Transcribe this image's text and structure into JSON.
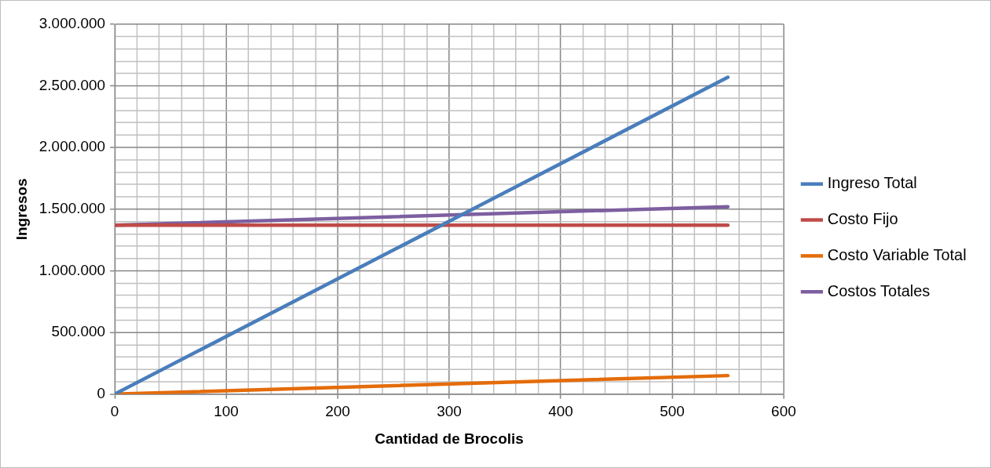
{
  "chart_data": {
    "type": "line",
    "xlabel": "Cantidad de Brocolis",
    "ylabel": "Ingresos",
    "x": [
      0,
      550
    ],
    "series": [
      {
        "name": "Ingreso Total",
        "color": "#4a7ebb",
        "values": [
          0,
          2570000
        ]
      },
      {
        "name": "Costo Fijo",
        "color": "#be4b48",
        "values": [
          1370000,
          1370000
        ]
      },
      {
        "name": "Costo Variable Total",
        "color": "#e46c0a",
        "values": [
          0,
          150000
        ]
      },
      {
        "name": "Costos Totales",
        "color": "#7d5fa0",
        "values": [
          1370000,
          1520000
        ]
      }
    ],
    "xlim": [
      0,
      600
    ],
    "xticks": [
      0,
      {
        "value": 20,
        "label": null
      },
      {
        "value": 40,
        "label": null
      },
      {
        "value": 60,
        "label": null
      },
      {
        "value": 80,
        "label": null
      },
      100,
      {
        "value": 120,
        "label": null
      },
      {
        "value": 140,
        "label": null
      },
      {
        "value": 160,
        "label": null
      },
      {
        "value": 180,
        "label": null
      },
      200,
      {
        "value": 220,
        "label": null
      },
      {
        "value": 240,
        "label": null
      },
      {
        "value": 260,
        "label": null
      },
      {
        "value": 280,
        "label": null
      },
      300,
      {
        "value": 320,
        "label": null
      },
      {
        "value": 340,
        "label": null
      },
      {
        "value": 360,
        "label": null
      },
      {
        "value": 380,
        "label": null
      },
      400,
      {
        "value": 420,
        "label": null
      },
      {
        "value": 440,
        "label": null
      },
      {
        "value": 460,
        "label": null
      },
      {
        "value": 480,
        "label": null
      },
      500,
      {
        "value": 520,
        "label": null
      },
      {
        "value": 540,
        "label": null
      },
      {
        "value": 560,
        "label": null
      },
      {
        "value": 580,
        "label": null
      },
      600
    ],
    "ylim": [
      0,
      3000000
    ],
    "yticks": [
      {
        "value": 0,
        "label": "0"
      },
      {
        "value": 100000,
        "label": null
      },
      {
        "value": 200000,
        "label": null
      },
      {
        "value": 300000,
        "label": null
      },
      {
        "value": 400000,
        "label": null
      },
      {
        "value": 500000,
        "label": "500.000"
      },
      {
        "value": 600000,
        "label": null
      },
      {
        "value": 700000,
        "label": null
      },
      {
        "value": 800000,
        "label": null
      },
      {
        "value": 900000,
        "label": null
      },
      {
        "value": 1000000,
        "label": "1.000.000"
      },
      {
        "value": 1100000,
        "label": null
      },
      {
        "value": 1200000,
        "label": null
      },
      {
        "value": 1300000,
        "label": null
      },
      {
        "value": 1400000,
        "label": null
      },
      {
        "value": 1500000,
        "label": "1.500.000"
      },
      {
        "value": 1600000,
        "label": null
      },
      {
        "value": 1700000,
        "label": null
      },
      {
        "value": 1800000,
        "label": null
      },
      {
        "value": 1900000,
        "label": null
      },
      {
        "value": 2000000,
        "label": "2.000.000"
      },
      {
        "value": 2100000,
        "label": null
      },
      {
        "value": 2200000,
        "label": null
      },
      {
        "value": 2300000,
        "label": null
      },
      {
        "value": 2400000,
        "label": null
      },
      {
        "value": 2500000,
        "label": "2.500.000"
      },
      {
        "value": 2600000,
        "label": null
      },
      {
        "value": 2700000,
        "label": null
      },
      {
        "value": 2800000,
        "label": null
      },
      {
        "value": 2900000,
        "label": null
      },
      {
        "value": 3000000,
        "label": "3.000.000"
      }
    ],
    "grid": true,
    "legend": "right",
    "marker": "none",
    "line_style": "solid"
  }
}
